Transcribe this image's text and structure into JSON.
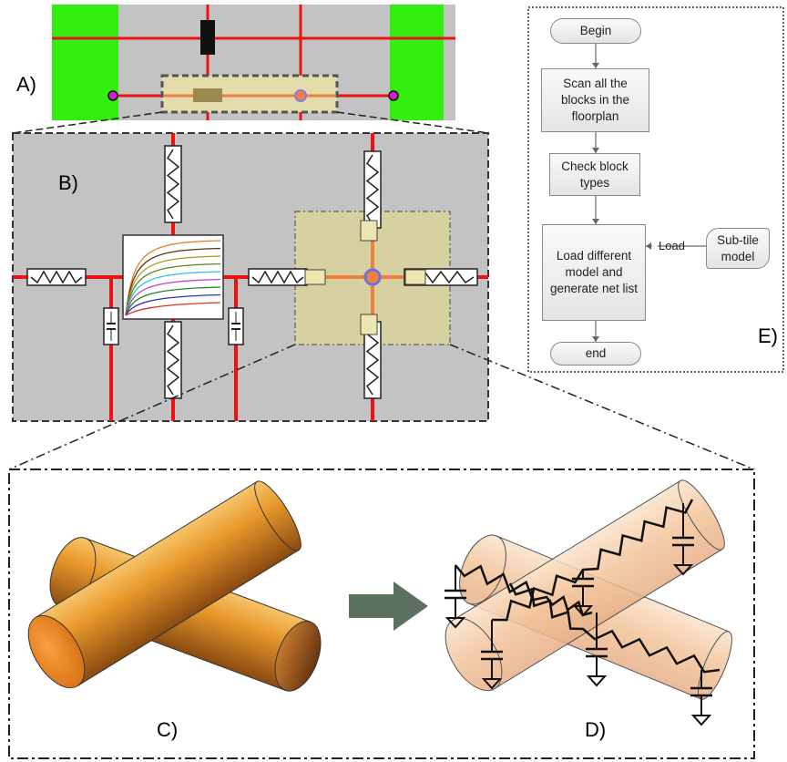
{
  "labels": {
    "a": "A)",
    "b": "B)",
    "c": "C)",
    "d": "D)",
    "e": "E)"
  },
  "flowchart": {
    "nodes": [
      "Begin",
      "Scan all the blocks in the floorplan",
      "Check block types",
      "Load different model and generate net list",
      "end"
    ],
    "side_input": "Sub-tile model",
    "edge_label": "Load"
  }
}
